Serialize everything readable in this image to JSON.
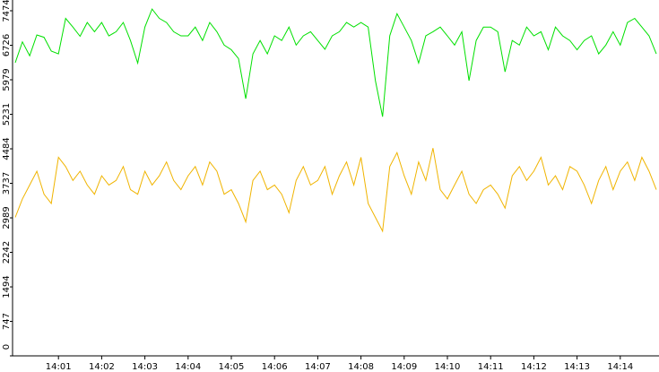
{
  "chart_data": {
    "type": "line",
    "categories": [
      null,
      null,
      null,
      null,
      null,
      null,
      "14:01",
      null,
      null,
      null,
      null,
      null,
      "14:02",
      null,
      null,
      null,
      null,
      null,
      "14:03",
      null,
      null,
      null,
      null,
      null,
      "14:04",
      null,
      null,
      null,
      null,
      null,
      "14:05",
      null,
      null,
      null,
      null,
      null,
      "14:06",
      null,
      null,
      null,
      null,
      null,
      "14:07",
      null,
      null,
      null,
      null,
      null,
      "14:08",
      null,
      null,
      null,
      null,
      null,
      "14:09",
      null,
      null,
      null,
      null,
      null,
      "14:10",
      null,
      null,
      null,
      null,
      null,
      "14:11",
      null,
      null,
      null,
      null,
      null,
      "14:12",
      null,
      null,
      null,
      null,
      null,
      "14:13",
      null,
      null,
      null,
      null,
      null,
      "14:14",
      null,
      null,
      null,
      null,
      null
    ],
    "series": [
      {
        "color": "#00e000",
        "values": [
          6350,
          6800,
          6500,
          6950,
          6900,
          6600,
          6540,
          7310,
          7120,
          6920,
          7220,
          7020,
          7220,
          6930,
          7020,
          7220,
          6830,
          6340,
          7120,
          7510,
          7310,
          7220,
          7020,
          6930,
          6930,
          7120,
          6830,
          7220,
          7020,
          6730,
          6630,
          6440,
          5570,
          6540,
          6830,
          6540,
          6930,
          6830,
          7120,
          6730,
          6930,
          7020,
          6830,
          6640,
          6930,
          7020,
          7220,
          7120,
          7220,
          7120,
          5960,
          5180,
          6930,
          7410,
          7120,
          6830,
          6340,
          6930,
          7020,
          7120,
          6930,
          6730,
          7020,
          5960,
          6830,
          7120,
          7120,
          7020,
          6150,
          6830,
          6730,
          7120,
          6930,
          7020,
          6630,
          7120,
          6930,
          6830,
          6630,
          6830,
          6930,
          6540,
          6730,
          7020,
          6730,
          7220,
          7310,
          7120,
          6930,
          6540
        ]
      },
      {
        "color": "#f0b400",
        "values": [
          3000,
          3400,
          3700,
          4000,
          3500,
          3300,
          4300,
          4100,
          3800,
          4000,
          3700,
          3500,
          3900,
          3700,
          3800,
          4100,
          3600,
          3500,
          4000,
          3700,
          3900,
          4200,
          3800,
          3600,
          3900,
          4100,
          3700,
          4200,
          4000,
          3500,
          3600,
          3300,
          2900,
          3800,
          4000,
          3600,
          3700,
          3500,
          3100,
          3800,
          4100,
          3700,
          3800,
          4100,
          3500,
          3900,
          4200,
          3700,
          4300,
          3300,
          3000,
          2700,
          4100,
          4400,
          3900,
          3500,
          4200,
          3800,
          4500,
          3600,
          3400,
          3700,
          4000,
          3500,
          3300,
          3600,
          3700,
          3500,
          3200,
          3900,
          4100,
          3800,
          4000,
          4300,
          3700,
          3900,
          3600,
          4100,
          4000,
          3700,
          3300,
          3800,
          4100,
          3600,
          4000,
          4200,
          3800,
          4300,
          4000,
          3600
        ]
      }
    ],
    "ylim": [
      0,
      7707
    ],
    "yticks": [
      0,
      747,
      1494,
      2242,
      2989,
      3737,
      4484,
      5231,
      5979,
      6726,
      7474
    ]
  }
}
